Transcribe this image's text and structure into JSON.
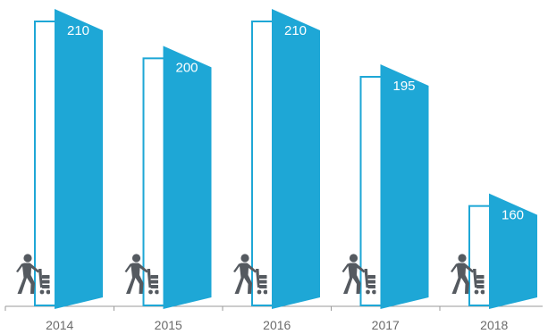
{
  "chart_data": {
    "type": "bar",
    "categories": [
      "2014",
      "2015",
      "2016",
      "2017",
      "2018"
    ],
    "values": [
      210,
      200,
      210,
      195,
      160
    ],
    "title": "",
    "xlabel": "",
    "ylabel": "",
    "ylim": [
      150,
      210
    ],
    "grid": false,
    "legend": "none",
    "colors": {
      "bar": "#1ea7d6",
      "outline": "#1ea7d6",
      "icon": "#555a60",
      "axis": "#9a9a9a",
      "label": "#6b6b6b"
    },
    "icon": "person-pushing-cart-icon"
  }
}
